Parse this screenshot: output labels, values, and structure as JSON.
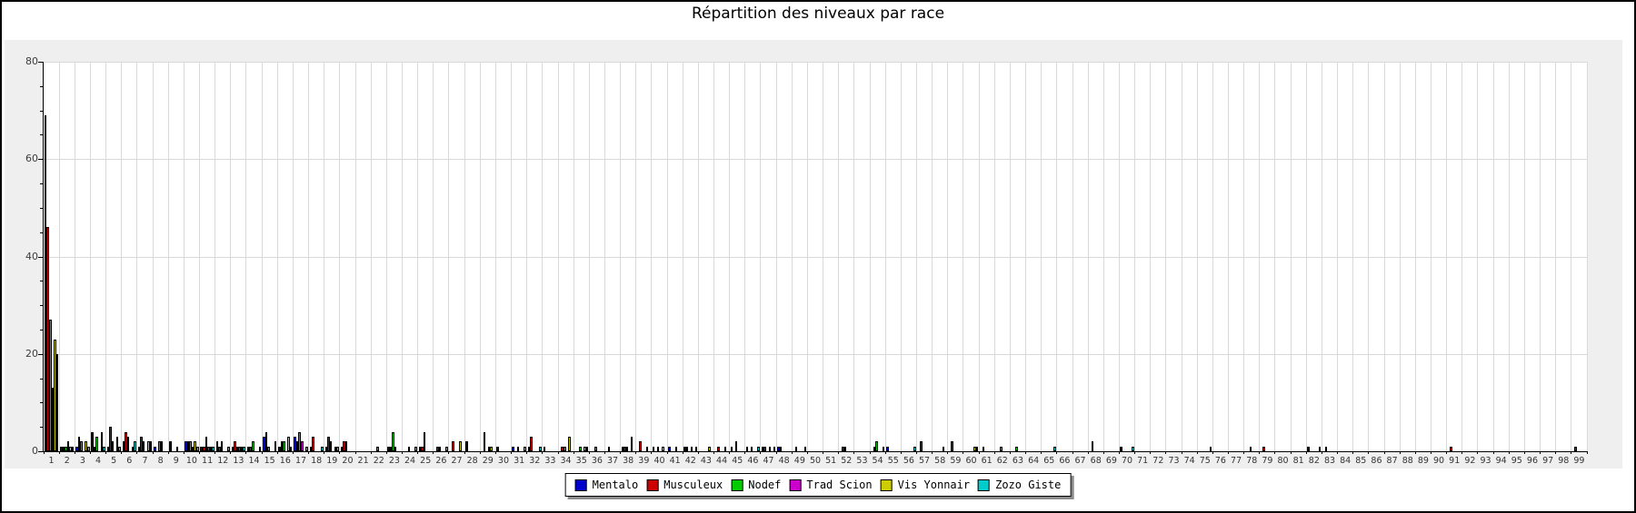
{
  "title": "Répartition des niveaux par race",
  "colors": {
    "panel_background": "#efefef",
    "plot_background": "#ffffff",
    "gridline": "#d9d9d9",
    "axis": "#000000",
    "legend_shadow": "#8a8a8a"
  },
  "chart_data": {
    "type": "bar",
    "title": "Répartition des niveaux par race",
    "xlabel": "",
    "ylabel": "",
    "x_label_range": [
      1,
      99
    ],
    "ylim": [
      0,
      80
    ],
    "y_ticks": [
      0,
      20,
      40,
      60,
      80
    ],
    "y_minor_step": 5,
    "grid": true,
    "legend_position": "bottom-center",
    "series": [
      {
        "name": "Mentalo",
        "color": "#0000cc",
        "values": [
          69,
          1,
          1,
          4,
          1,
          2,
          1,
          1,
          2,
          2,
          1,
          2,
          1,
          1,
          3,
          1,
          3,
          1,
          1,
          1,
          0,
          0,
          1,
          0,
          1,
          0,
          0,
          2,
          0,
          1,
          1,
          1,
          1,
          0,
          0,
          0,
          0,
          1,
          0,
          1,
          1,
          1,
          0,
          0,
          1,
          1,
          1,
          1,
          0,
          0,
          0,
          0,
          0,
          0,
          1,
          0,
          0,
          0,
          0,
          0,
          0,
          0,
          0,
          0,
          0,
          0,
          0,
          0,
          0,
          1,
          0,
          0,
          0,
          0,
          0,
          0,
          0,
          0,
          0,
          0,
          0,
          1,
          0,
          0,
          0,
          0,
          0,
          0,
          0,
          0,
          0,
          0,
          0,
          0,
          0,
          0,
          0,
          0,
          0
        ]
      },
      {
        "name": "Musculeux",
        "color": "#cc0000",
        "values": [
          46,
          1,
          3,
          1,
          5,
          4,
          3,
          0,
          0,
          2,
          1,
          1,
          2,
          1,
          4,
          2,
          2,
          3,
          3,
          2,
          0,
          0,
          1,
          0,
          1,
          1,
          2,
          0,
          4,
          0,
          0,
          3,
          0,
          1,
          0,
          0,
          1,
          1,
          2,
          0,
          0,
          1,
          0,
          1,
          0,
          0,
          1,
          1,
          1,
          0,
          0,
          1,
          0,
          1,
          0,
          0,
          2,
          0,
          2,
          0,
          1,
          0,
          0,
          0,
          0,
          0,
          0,
          2,
          0,
          0,
          0,
          0,
          0,
          0,
          0,
          0,
          0,
          0,
          1,
          0,
          0,
          0,
          1,
          0,
          0,
          0,
          0,
          0,
          0,
          0,
          1,
          0,
          0,
          0,
          0,
          0,
          0,
          0,
          1
        ]
      },
      {
        "name": "Nodef",
        "color": "#00cc00",
        "values": [
          27,
          1,
          2,
          3,
          2,
          3,
          2,
          2,
          0,
          2,
          3,
          2,
          1,
          2,
          1,
          2,
          4,
          0,
          2,
          2,
          0,
          1,
          4,
          1,
          4,
          1,
          0,
          0,
          0,
          0,
          1,
          0,
          0,
          1,
          1,
          1,
          0,
          1,
          0,
          1,
          0,
          0,
          0,
          0,
          2,
          1,
          0,
          0,
          0,
          0,
          0,
          1,
          0,
          2,
          0,
          0,
          0,
          0,
          0,
          0,
          0,
          1,
          1,
          0,
          0,
          0,
          0,
          0,
          0,
          0,
          0,
          0,
          0,
          0,
          0,
          0,
          0,
          1,
          0,
          0,
          0,
          0,
          0,
          0,
          0,
          0,
          0,
          0,
          0,
          0,
          0,
          0,
          0,
          0,
          0,
          0,
          0,
          0,
          0
        ]
      },
      {
        "name": "Trad Scion",
        "color": "#cc00cc",
        "values": [
          13,
          2,
          0,
          0,
          0,
          0,
          0,
          2,
          1,
          1,
          1,
          0,
          1,
          0,
          0,
          0,
          2,
          0,
          0,
          0,
          0,
          0,
          1,
          0,
          0,
          0,
          0,
          0,
          1,
          0,
          0,
          0,
          0,
          0,
          0,
          0,
          0,
          0,
          0,
          0,
          1,
          1,
          0,
          0,
          0,
          0,
          1,
          0,
          0,
          0,
          0,
          0,
          0,
          0,
          0,
          0,
          0,
          0,
          0,
          0,
          0,
          0,
          0,
          0,
          0,
          0,
          0,
          0,
          0,
          0,
          0,
          0,
          0,
          0,
          0,
          0,
          0,
          0,
          0,
          0,
          0,
          0,
          0,
          0,
          0,
          0,
          0,
          0,
          0,
          0,
          0,
          0,
          0,
          0,
          0,
          0,
          0,
          0,
          0
        ]
      },
      {
        "name": "Vis Yonnair",
        "color": "#cccc00",
        "values": [
          23,
          1,
          2,
          4,
          3,
          1,
          2,
          0,
          0,
          2,
          1,
          0,
          1,
          0,
          0,
          3,
          0,
          0,
          1,
          0,
          0,
          0,
          0,
          0,
          0,
          0,
          2,
          0,
          1,
          0,
          0,
          0,
          0,
          3,
          1,
          0,
          0,
          3,
          1,
          1,
          0,
          0,
          1,
          1,
          0,
          0,
          0,
          0,
          0,
          0,
          0,
          0,
          0,
          0,
          0,
          0,
          0,
          1,
          0,
          1,
          0,
          0,
          0,
          0,
          0,
          0,
          0,
          0,
          0,
          0,
          0,
          0,
          0,
          0,
          0,
          0,
          0,
          0,
          0,
          0,
          0,
          0,
          0,
          0,
          0,
          0,
          0,
          0,
          0,
          0,
          0,
          0,
          0,
          0,
          0,
          0,
          0,
          0,
          0
        ]
      },
      {
        "name": "Zozo Giste",
        "color": "#00cccc",
        "values": [
          20,
          1,
          1,
          1,
          1,
          2,
          2,
          0,
          0,
          1,
          1,
          1,
          1,
          1,
          2,
          1,
          1,
          1,
          1,
          0,
          0,
          0,
          0,
          1,
          0,
          1,
          0,
          0,
          0,
          0,
          1,
          1,
          0,
          0,
          1,
          0,
          0,
          0,
          0,
          0,
          0,
          1,
          0,
          0,
          0,
          1,
          1,
          0,
          1,
          0,
          0,
          0,
          0,
          1,
          0,
          1,
          0,
          0,
          0,
          1,
          0,
          0,
          0,
          0,
          1,
          0,
          0,
          0,
          0,
          1,
          0,
          0,
          0,
          0,
          1,
          0,
          0,
          0,
          0,
          0,
          0,
          1,
          0,
          0,
          0,
          0,
          0,
          0,
          0,
          0,
          0,
          0,
          0,
          0,
          0,
          0,
          0,
          0,
          0
        ]
      }
    ]
  },
  "legend": {
    "items": [
      "Mentalo",
      "Musculeux",
      "Nodef",
      "Trad Scion",
      "Vis Yonnair",
      "Zozo Giste"
    ]
  }
}
